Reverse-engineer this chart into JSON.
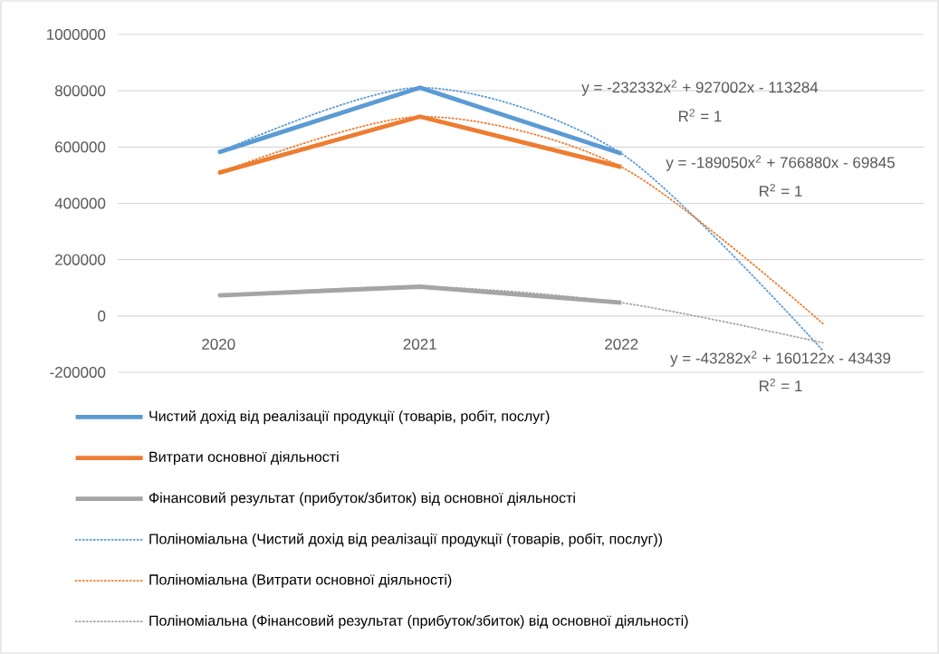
{
  "chart_data": {
    "type": "line",
    "categories": [
      "2020",
      "2021",
      "2022",
      null
    ],
    "series": [
      {
        "name": "Чистий дохід від реалізації продукції (товарів, робіт, послуг)",
        "color": "#5b9bd5",
        "values": [
          581000,
          811000,
          577000,
          null
        ]
      },
      {
        "name": "Витрати основної діяльності",
        "color": "#ed7d31",
        "values": [
          508000,
          708000,
          529000,
          null
        ]
      },
      {
        "name": "Фінансовий результат (прибуток/збиток) від основної діяльності",
        "color": "#a5a5a5",
        "values": [
          73000,
          104000,
          47000,
          null
        ]
      },
      {
        "name": "Поліноміальна (Чистий дохід від реалізації продукції (товарів, робіт, послуг))",
        "color": "#5b9bd5",
        "type": "line",
        "line_style": "dotted",
        "values": [
          581000,
          811000,
          577000,
          -123000
        ]
      },
      {
        "name": "Поліноміальна (Витрати основної діяльності)",
        "color": "#ed7d31",
        "type": "line",
        "line_style": "dotted",
        "values": [
          508000,
          708000,
          529000,
          -27000
        ]
      },
      {
        "name": "Поліноміальна (Фінансовий результат (прибуток/збиток) від основної діяльності)",
        "color": "#a5a5a5",
        "type": "line",
        "line_style": "dotted",
        "values": [
          73000,
          104000,
          47000,
          -95000
        ]
      }
    ],
    "ylim": [
      -200000,
      1000000
    ],
    "yticks": [
      -200000,
      0,
      200000,
      400000,
      600000,
      800000,
      1000000
    ],
    "grid": "y",
    "legend": "bottom",
    "line_style": "solid",
    "annotations": [
      "y = -232332x$^{2}$ + 927002x - 113284",
      "R$^{2}$ = 1",
      "y = -189050x$^{2}$ + 766880x - 69845",
      "R$^{2}$ = 1",
      "y = -43282x$^{2}$ + 160122x - 43439",
      "R$^{2}$ = 1"
    ]
  }
}
